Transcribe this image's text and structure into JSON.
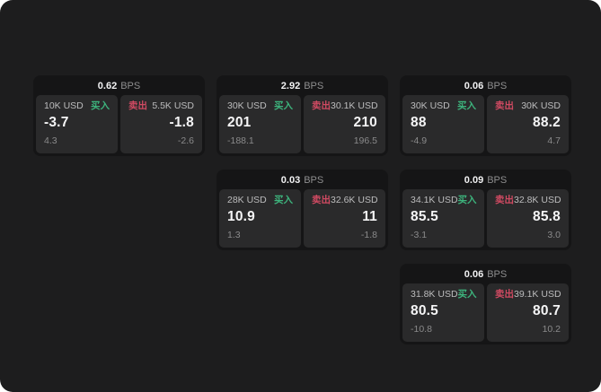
{
  "labels": {
    "bps": "BPS",
    "buy": "买入",
    "sell": "卖出"
  },
  "colors": {
    "screen_bg": "#1d1d1e",
    "card_bg": "#151516",
    "panel_bg": "#2a2a2b",
    "buy_green": "#3db47d",
    "sell_red": "#d04a62",
    "primary_text": "#f5f5f6",
    "muted_text": "#8a8a8b"
  },
  "cards": [
    {
      "col": 1,
      "row": 1,
      "bps": "0.62",
      "buy": {
        "amount": "10K USD",
        "value": "-3.7",
        "sub": "4.3"
      },
      "sell": {
        "amount": "5.5K USD",
        "value": "-1.8",
        "sub": "-2.6"
      }
    },
    {
      "col": 2,
      "row": 1,
      "bps": "2.92",
      "buy": {
        "amount": "30K USD",
        "value": "201",
        "sub": "-188.1"
      },
      "sell": {
        "amount": "30.1K USD",
        "value": "210",
        "sub": "196.5"
      }
    },
    {
      "col": 3,
      "row": 1,
      "bps": "0.06",
      "buy": {
        "amount": "30K USD",
        "value": "88",
        "sub": "-4.9"
      },
      "sell": {
        "amount": "30K USD",
        "value": "88.2",
        "sub": "4.7"
      }
    },
    {
      "col": 2,
      "row": 2,
      "bps": "0.03",
      "buy": {
        "amount": "28K USD",
        "value": "10.9",
        "sub": "1.3"
      },
      "sell": {
        "amount": "32.6K USD",
        "value": "11",
        "sub": "-1.8"
      }
    },
    {
      "col": 3,
      "row": 2,
      "bps": "0.09",
      "buy": {
        "amount": "34.1K USD",
        "value": "85.5",
        "sub": "-3.1"
      },
      "sell": {
        "amount": "32.8K USD",
        "value": "85.8",
        "sub": "3.0"
      }
    },
    {
      "col": 3,
      "row": 3,
      "bps": "0.06",
      "buy": {
        "amount": "31.8K USD",
        "value": "80.5",
        "sub": "-10.8"
      },
      "sell": {
        "amount": "39.1K USD",
        "value": "80.7",
        "sub": "10.2"
      }
    }
  ]
}
